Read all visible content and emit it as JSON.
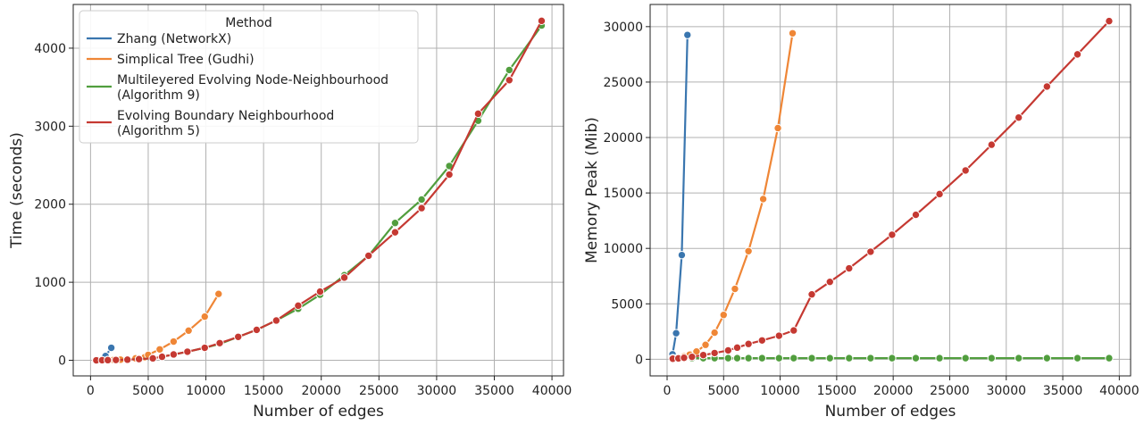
{
  "legend": {
    "title": "Method",
    "entries": [
      {
        "lines": [
          "Zhang (NetworkX)"
        ],
        "color": "#3a76af"
      },
      {
        "lines": [
          "Simplical Tree (Gudhi)"
        ],
        "color": "#ef8636"
      },
      {
        "lines": [
          "Multileyered Evolving Node-Neighbourhood",
          "(Algorithm 9)"
        ],
        "color": "#519e3e"
      },
      {
        "lines": [
          "Evolving Boundary Neighbourhood",
          "(Algorithm 5)"
        ],
        "color": "#c53932"
      }
    ]
  },
  "chart_data": [
    {
      "type": "line",
      "xlabel": "Number of edges",
      "ylabel": "Time (seconds)",
      "xlim": [
        -1500,
        41000
      ],
      "ylim": [
        -200,
        4560
      ],
      "xticks": [
        0,
        5000,
        10000,
        15000,
        20000,
        25000,
        30000,
        35000,
        40000
      ],
      "yticks": [
        0,
        1000,
        2000,
        3000,
        4000
      ],
      "grid": true,
      "legend_position": "top-left",
      "series": [
        {
          "name": "Zhang (NetworkX)",
          "color": "#3a76af",
          "x": [
            480,
            700,
            1000,
            1300,
            1800
          ],
          "y": [
            1,
            4,
            12,
            55,
            160
          ]
        },
        {
          "name": "Simplical Tree (Gudhi)",
          "color": "#ef8636",
          "x": [
            500,
            1000,
            1500,
            2000,
            2600,
            3200,
            3900,
            4700,
            5000,
            6000,
            7200,
            8500,
            9900,
            11100
          ],
          "y": [
            0,
            1,
            3,
            5,
            8,
            14,
            25,
            40,
            70,
            140,
            240,
            380,
            560,
            850
          ]
        },
        {
          "name": "Multileyered Evolving Node-Neighbourhood (Algorithm 9)",
          "color": "#519e3e",
          "x": [
            500,
            1000,
            1500,
            2200,
            3200,
            4200,
            5400,
            6200,
            7200,
            8400,
            9900,
            11200,
            12800,
            14400,
            16100,
            18000,
            19900,
            22000,
            24100,
            26400,
            28700,
            31100,
            33600,
            36300,
            39100
          ],
          "y": [
            0,
            1,
            2,
            4,
            8,
            15,
            25,
            45,
            75,
            110,
            160,
            210,
            300,
            390,
            510,
            660,
            840,
            1090,
            1340,
            1760,
            2060,
            2490,
            3070,
            3720,
            4290
          ]
        },
        {
          "name": "Evolving Boundary Neighbourhood (Algorithm 5)",
          "color": "#c53932",
          "x": [
            500,
            1000,
            1500,
            2200,
            3200,
            4200,
            5400,
            6200,
            7200,
            8400,
            9900,
            11200,
            12800,
            14400,
            16100,
            18000,
            19900,
            22000,
            24100,
            26400,
            28700,
            31100,
            33600,
            36300,
            39100
          ],
          "y": [
            0,
            1,
            2,
            4,
            8,
            15,
            25,
            45,
            75,
            110,
            160,
            220,
            300,
            390,
            510,
            700,
            880,
            1060,
            1340,
            1640,
            1950,
            2380,
            3160,
            3590,
            4350
          ]
        }
      ]
    },
    {
      "type": "line",
      "xlabel": "Number of edges",
      "ylabel": "Memory Peak (Mib)",
      "xlim": [
        -1500,
        41000
      ],
      "ylim": [
        -1500,
        32000
      ],
      "xticks": [
        0,
        5000,
        10000,
        15000,
        20000,
        25000,
        30000,
        35000,
        40000
      ],
      "yticks": [
        0,
        5000,
        10000,
        15000,
        20000,
        25000,
        30000
      ],
      "grid": true,
      "legend_position": "none",
      "series": [
        {
          "name": "Zhang (NetworkX)",
          "color": "#3a76af",
          "x": [
            480,
            800,
            1300,
            1800
          ],
          "y": [
            450,
            2350,
            9400,
            29250
          ]
        },
        {
          "name": "Simplical Tree (Gudhi)",
          "color": "#ef8636",
          "x": [
            500,
            1000,
            1500,
            2000,
            2600,
            3400,
            4200,
            5000,
            6000,
            7200,
            8500,
            9800,
            11100
          ],
          "y": [
            80,
            150,
            260,
            420,
            700,
            1300,
            2400,
            4000,
            6350,
            9750,
            14450,
            20850,
            29400
          ]
        },
        {
          "name": "Multileyered Evolving Node-Neighbourhood (Algorithm 9)",
          "color": "#519e3e",
          "x": [
            500,
            1000,
            1500,
            2200,
            3200,
            4200,
            5400,
            6200,
            7200,
            8400,
            9900,
            11200,
            12800,
            14400,
            16100,
            18000,
            19900,
            22000,
            24100,
            26400,
            28700,
            31100,
            33600,
            36300,
            39100
          ],
          "y": [
            100,
            100,
            100,
            100,
            100,
            100,
            100,
            100,
            100,
            100,
            100,
            100,
            100,
            100,
            100,
            100,
            100,
            100,
            100,
            100,
            100,
            100,
            100,
            100,
            100
          ]
        },
        {
          "name": "Evolving Boundary Neighbourhood (Algorithm 5)",
          "color": "#c53932",
          "x": [
            500,
            1000,
            1500,
            2200,
            3200,
            4200,
            5400,
            6200,
            7200,
            8400,
            9900,
            11200,
            12800,
            14400,
            16100,
            18000,
            19900,
            22000,
            24100,
            26400,
            28700,
            31100,
            33600,
            36300,
            39100
          ],
          "y": [
            50,
            80,
            130,
            220,
            380,
            560,
            800,
            1050,
            1380,
            1700,
            2120,
            2600,
            5850,
            6980,
            8200,
            9700,
            11230,
            13030,
            14900,
            17030,
            19350,
            21800,
            24600,
            27500,
            30500
          ]
        }
      ]
    }
  ]
}
